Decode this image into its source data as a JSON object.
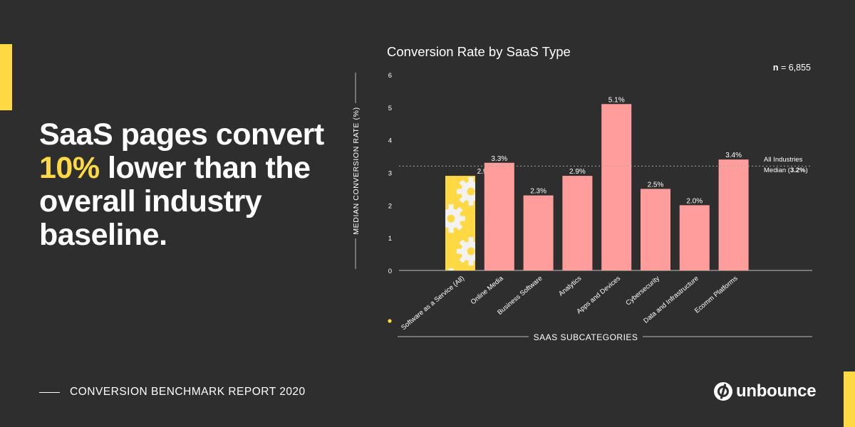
{
  "headline": {
    "part1": "SaaS pages convert ",
    "highlight": "10%",
    "part2": " lower than the overall industry baseline."
  },
  "footer": {
    "report": "CONVERSION BENCHMARK REPORT 2020"
  },
  "brand": {
    "name": "unbounce"
  },
  "colors": {
    "background": "#2e2e2e",
    "accent": "#ffd944",
    "bar": "#ff9d9d"
  },
  "chart_data": {
    "type": "bar",
    "title": "Conversion Rate by SaaS Type",
    "n_label": "n",
    "n_value": " = 6,855",
    "xlabel": "SAAS SUBCATEGORIES",
    "ylabel": "MEDIAN CONVERSION RATE (%)",
    "ylim": [
      0,
      6
    ],
    "yticks": [
      0,
      1,
      2,
      3,
      4,
      5,
      6
    ],
    "categories": [
      "Software as a Service (All)",
      "Online Media",
      "Business Software",
      "Analytics",
      "Apps and Devices",
      "Cybersecurity",
      "Data and Infrastructure",
      "Ecomm Platforms"
    ],
    "values": [
      2.9,
      3.3,
      2.3,
      2.9,
      5.1,
      2.5,
      2.0,
      3.4
    ],
    "value_labels": [
      "2.9%",
      "3.3%",
      "2.3%",
      "2.9%",
      "5.1%",
      "2.5%",
      "2.0%",
      "3.4%"
    ],
    "highlight_index": 0,
    "reference_line": {
      "value": 3.2,
      "label_line1": "All Industries",
      "label_line2_prefix": "Median (",
      "label_line2_bold": "3.2%",
      "label_line2_suffix": ")"
    }
  }
}
